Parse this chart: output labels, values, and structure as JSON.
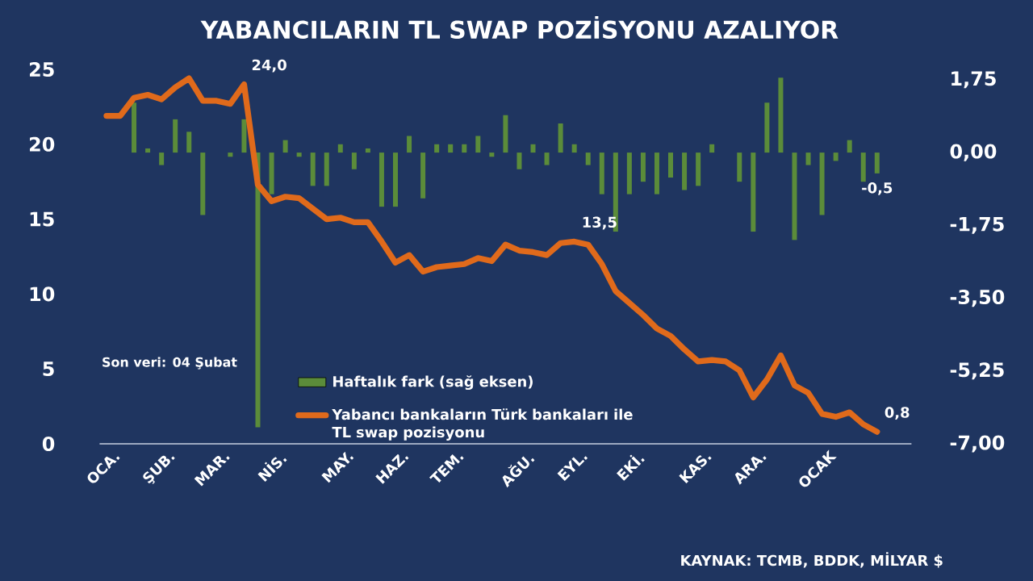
{
  "chart_data": {
    "type": "bar",
    "title": "YABANCILARIN TL SWAP POZİSYONU AZALIYOR",
    "categories": [
      "OCA.",
      null,
      null,
      null,
      "ŞUB.",
      null,
      null,
      null,
      "MAR.",
      null,
      null,
      null,
      "NİS.",
      null,
      null,
      null,
      null,
      "MAY.",
      null,
      null,
      null,
      "HAZ.",
      null,
      null,
      null,
      "TEM.",
      null,
      null,
      null,
      null,
      "AĞU.",
      null,
      null,
      null,
      "EYL.",
      null,
      null,
      null,
      "EKİ.",
      null,
      null,
      null,
      null,
      "KAS.",
      null,
      null,
      null,
      "ARA.",
      null,
      null,
      null,
      null,
      "OCAK",
      null,
      null,
      null,
      null
    ],
    "series": [
      {
        "name": "Haftalık fark (sağ eksen)",
        "axis": "y2",
        "color": "#5b8c3a",
        "values": [
          null,
          0.0,
          1.2,
          0.1,
          -0.3,
          0.8,
          0.5,
          -1.5,
          0.0,
          -0.1,
          0.8,
          -6.6,
          -1.0,
          0.3,
          -0.1,
          -0.8,
          -0.8,
          0.2,
          -0.4,
          0.1,
          -1.3,
          -1.3,
          0.4,
          -1.1,
          0.2,
          0.2,
          0.2,
          0.4,
          -0.1,
          0.9,
          -0.4,
          0.2,
          -0.3,
          0.7,
          0.2,
          -0.3,
          -1.0,
          -1.9,
          -1.0,
          -0.7,
          -1.0,
          -0.6,
          -0.9,
          -0.8,
          0.2,
          0.0,
          -0.7,
          -1.9,
          1.2,
          1.8,
          -2.1,
          -0.3,
          -1.5,
          -0.2,
          0.3,
          -0.7,
          -0.5
        ],
        "value_labels": [
          null,
          null,
          null,
          null,
          null,
          null,
          null,
          null,
          null,
          null,
          null,
          null,
          null,
          null,
          null,
          null,
          null,
          null,
          null,
          null,
          null,
          null,
          null,
          null,
          null,
          null,
          null,
          null,
          null,
          null,
          null,
          null,
          null,
          null,
          null,
          null,
          null,
          null,
          null,
          null,
          null,
          null,
          null,
          null,
          null,
          null,
          null,
          null,
          null,
          null,
          null,
          null,
          null,
          null,
          null,
          null,
          "-0,5"
        ]
      },
      {
        "name": "Yabancı bankaların Türk bankaları ile TL swap pozisyonu",
        "type": "line",
        "color": "#e06a1b",
        "values": [
          21.9,
          21.9,
          23.1,
          23.3,
          23.0,
          23.8,
          24.4,
          22.9,
          22.9,
          22.7,
          24.0,
          17.3,
          16.2,
          16.5,
          16.4,
          15.7,
          15.0,
          15.1,
          14.8,
          14.8,
          13.5,
          12.1,
          12.6,
          11.5,
          11.8,
          11.9,
          12.0,
          12.4,
          12.2,
          13.3,
          12.9,
          12.8,
          12.6,
          13.4,
          13.5,
          13.3,
          12.0,
          10.2,
          9.4,
          8.6,
          7.7,
          7.2,
          6.3,
          5.5,
          5.6,
          5.5,
          4.9,
          3.1,
          4.3,
          5.9,
          3.9,
          3.4,
          2.0,
          1.8,
          2.1,
          1.3,
          0.8
        ],
        "value_labels": [
          null,
          null,
          null,
          null,
          null,
          null,
          null,
          null,
          null,
          null,
          "24,0",
          null,
          null,
          null,
          null,
          null,
          null,
          null,
          null,
          null,
          null,
          null,
          null,
          null,
          null,
          null,
          null,
          null,
          null,
          null,
          null,
          null,
          null,
          null,
          "13,5",
          null,
          null,
          null,
          null,
          null,
          null,
          null,
          null,
          null,
          null,
          null,
          null,
          null,
          null,
          null,
          null,
          null,
          null,
          null,
          null,
          null,
          "0,8"
        ]
      }
    ],
    "ylim": [
      0,
      25
    ],
    "yticks": [
      0,
      5,
      10,
      15,
      20,
      25
    ],
    "y2lim": [
      -7,
      2
    ],
    "y2ticks": [
      {
        "value": -7,
        "label": "-7,00"
      },
      {
        "value": -5.25,
        "label": "-5,25"
      },
      {
        "value": -3.5,
        "label": "-3,50"
      },
      {
        "value": -1.75,
        "label": "-1,75"
      },
      {
        "value": 0,
        "label": "0,00"
      },
      {
        "value": 1.75,
        "label": "1,75"
      }
    ],
    "legend": "bottom",
    "annotations": [
      "Son veri: 04 Şubat",
      "KAYNAK: TCMB, BDDK, MİLYAR $"
    ]
  }
}
